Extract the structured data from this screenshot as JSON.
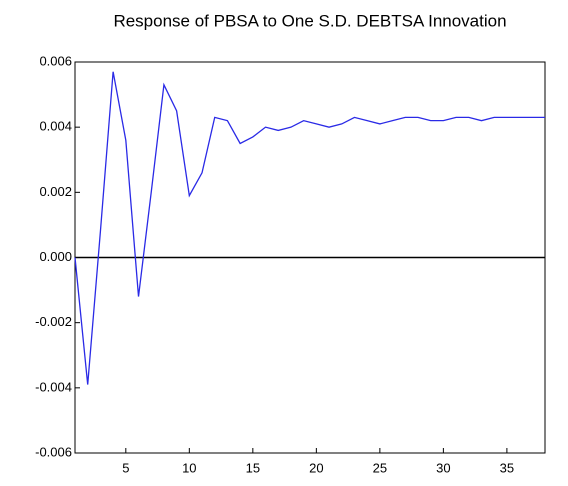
{
  "chart_data": {
    "type": "line",
    "title": "Response of PBSA to One S.D. DEBTSA Innovation",
    "x": [
      1,
      2,
      3,
      4,
      5,
      6,
      7,
      8,
      9,
      10,
      11,
      12,
      13,
      14,
      15,
      16,
      17,
      18,
      19,
      20,
      21,
      22,
      23,
      24,
      25,
      26,
      27,
      28,
      29,
      30,
      31,
      32,
      33,
      34,
      35,
      36,
      37,
      38
    ],
    "series": [
      {
        "name": "PBSA",
        "color": "#2a2ae6",
        "values": [
          0.0,
          -0.0039,
          0.0008,
          0.0057,
          0.0036,
          -0.0012,
          0.002,
          0.0053,
          0.0045,
          0.0019,
          0.0026,
          0.0043,
          0.0042,
          0.0035,
          0.0037,
          0.004,
          0.0039,
          0.004,
          0.0042,
          0.0041,
          0.004,
          0.0041,
          0.0043,
          0.0042,
          0.0041,
          0.0042,
          0.0043,
          0.0043,
          0.0042,
          0.0042,
          0.0043,
          0.0043,
          0.0042,
          0.0043,
          0.0043,
          0.0043,
          0.0043,
          0.0043
        ]
      }
    ],
    "xlim": [
      1,
      38
    ],
    "xticks": [
      5,
      10,
      15,
      20,
      25,
      30,
      35
    ],
    "ylim": [
      -0.006,
      0.006
    ],
    "yticks": [
      {
        "value": -0.006,
        "label": "-0.006"
      },
      {
        "value": -0.004,
        "label": "-0.004"
      },
      {
        "value": -0.002,
        "label": "-0.002"
      },
      {
        "value": 0,
        "label": "0.000"
      },
      {
        "value": 0.002,
        "label": "0.002"
      },
      {
        "value": 0.004,
        "label": "0.004"
      },
      {
        "value": 0.006,
        "label": "0.006"
      }
    ],
    "zero_line": true
  }
}
